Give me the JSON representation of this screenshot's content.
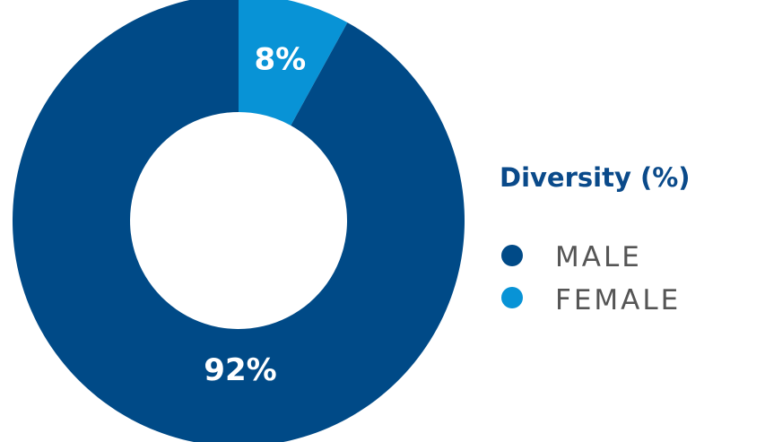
{
  "chart_data": {
    "type": "pie",
    "title": "",
    "legend_title": "Diversity (%)",
    "legend_placement": "right",
    "slices": [
      {
        "label": "MALE",
        "value": 92,
        "display": "92%",
        "color": "#004a87"
      },
      {
        "label": "FEMALE",
        "value": 8,
        "display": "8%",
        "color": "#0893d6"
      }
    ]
  }
}
